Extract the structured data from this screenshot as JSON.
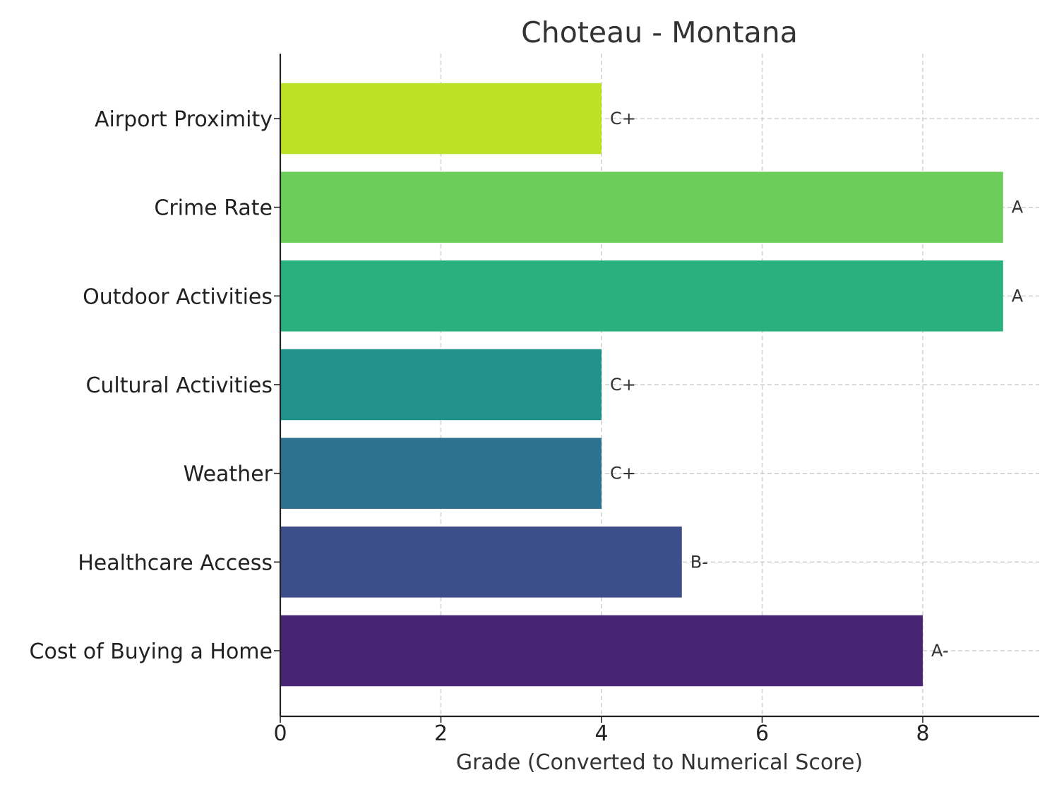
{
  "chart_data": {
    "type": "bar",
    "orientation": "horizontal",
    "title": "Choteau - Montana",
    "xlabel": "Grade (Converted to Numerical Score)",
    "ylabel": "",
    "xlim": [
      0,
      9.45
    ],
    "xticks": [
      "0",
      "2",
      "4",
      "6",
      "8"
    ],
    "grid": true,
    "categories": [
      "Cost of Buying a Home",
      "Healthcare Access",
      "Weather",
      "Cultural Activities",
      "Outdoor Activities",
      "Crime Rate",
      "Airport Proximity"
    ],
    "values": [
      8,
      5,
      4,
      4,
      9,
      9,
      4
    ],
    "grades": [
      "A-",
      "B-",
      "C+",
      "C+",
      "A",
      "A",
      "C+"
    ],
    "colors": [
      "#472574",
      "#3d4f8a",
      "#2c718e",
      "#21918c",
      "#2ab07f",
      "#6ccd5a",
      "#bde125"
    ]
  }
}
